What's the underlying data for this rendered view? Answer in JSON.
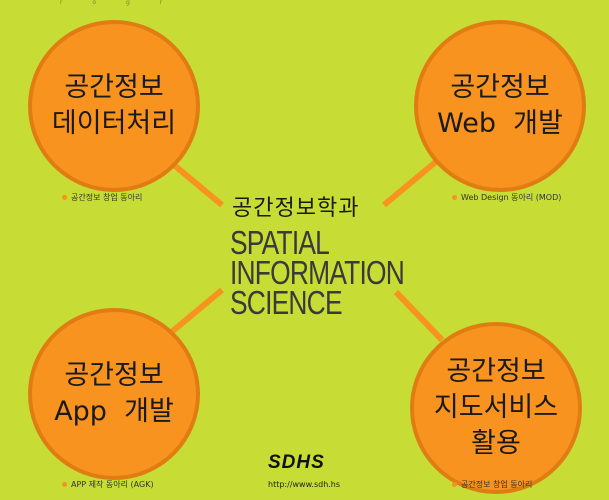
{
  "top_strip": "r  o  g  r",
  "center": {
    "title_ko": "공간정보학과",
    "title_en": [
      "SPATIAL",
      "INFORMATION",
      "SCIENCE"
    ]
  },
  "circles": {
    "top_left": {
      "lines": [
        "공간정보",
        "데이터처리"
      ],
      "caption": "공간정보 창업 동아리"
    },
    "top_right": {
      "lines": [
        "공간정보",
        "Web  개발"
      ],
      "caption": "Web Design 동아리 (MOD)"
    },
    "bottom_left": {
      "lines": [
        "공간정보",
        "App  개발"
      ],
      "caption": "APP 제작 동아리 (AGK)"
    },
    "bottom_right": {
      "lines": [
        "공간정보",
        "지도서비스",
        "활용"
      ],
      "caption": "공간정보 창업 동아리"
    }
  },
  "logo": {
    "text": "SDHS",
    "url": "http://www.sdh.hs"
  },
  "colors": {
    "background": "#c7dc34",
    "circle": "#f7931e",
    "connector": "#f7931e"
  }
}
